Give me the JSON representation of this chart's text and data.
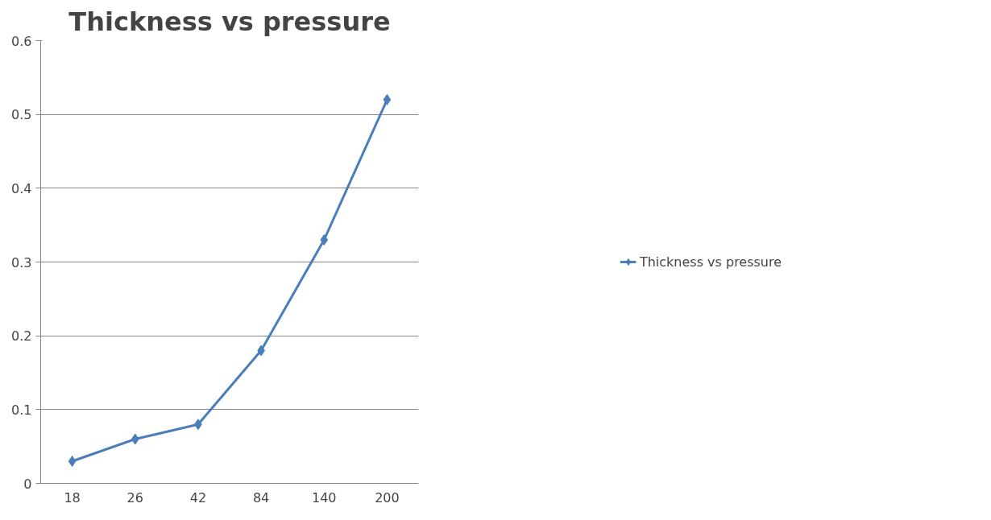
{
  "chart_data": {
    "type": "line",
    "title": "Thickness vs pressure",
    "categories": [
      "18",
      "26",
      "42",
      "84",
      "140",
      "200"
    ],
    "series": [
      {
        "name": "Thickness vs pressure",
        "color": "#4a7ebb",
        "values": [
          0.03,
          0.06,
          0.08,
          0.18,
          0.33,
          0.52
        ]
      }
    ],
    "ylim": [
      0,
      0.6
    ],
    "yticks": [
      0,
      0.1,
      0.2,
      0.3,
      0.4,
      0.5,
      0.6
    ],
    "grid": "y",
    "legend": "right",
    "marker": "diamond",
    "line_style": "solid"
  }
}
